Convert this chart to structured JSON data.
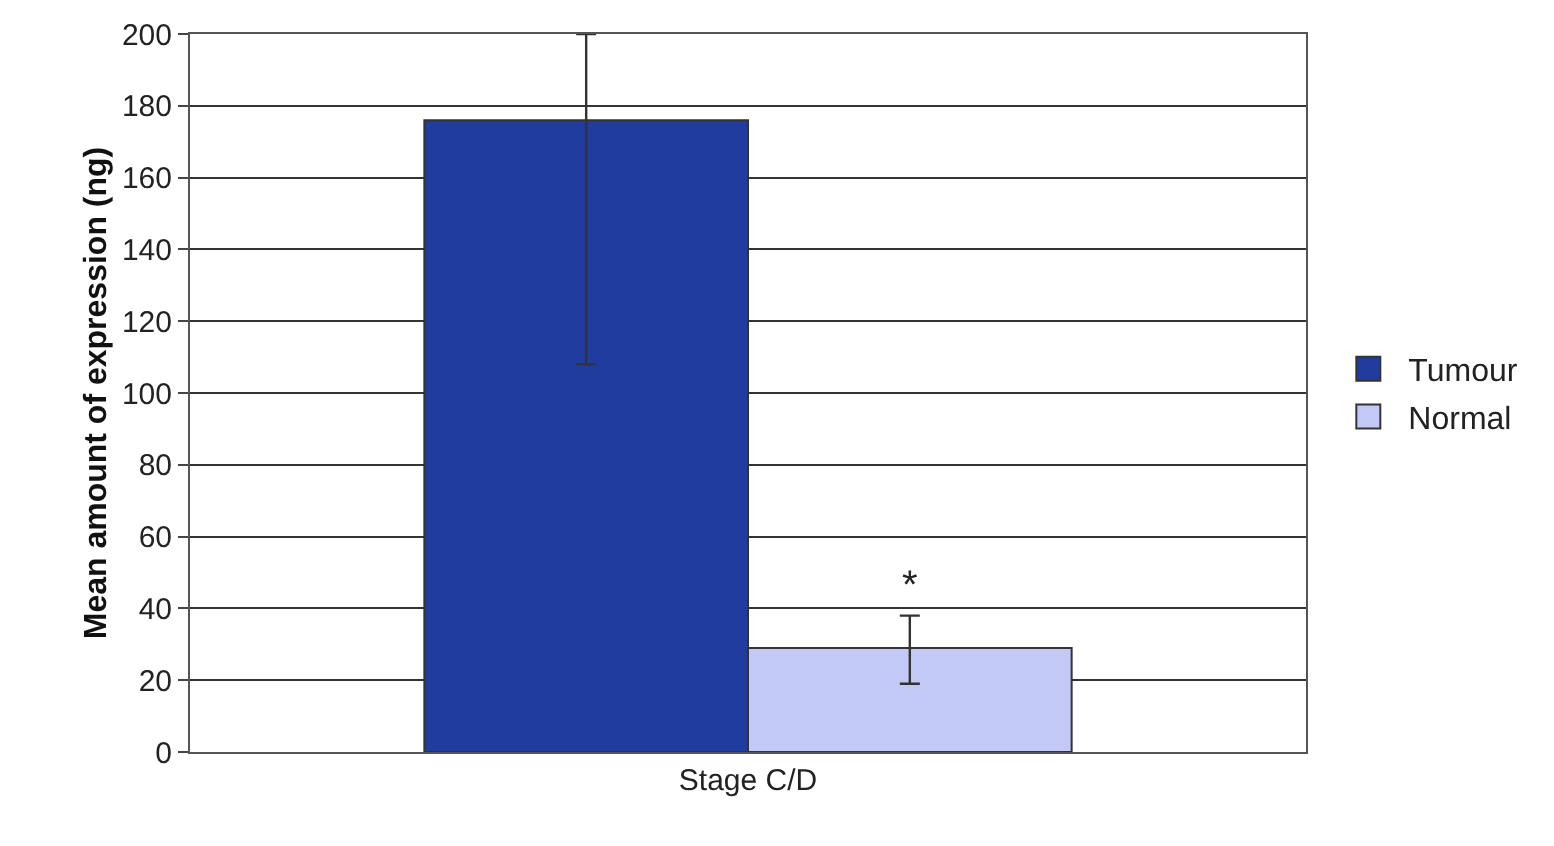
{
  "chart_data": {
    "type": "bar",
    "ylabel": "Mean amount of expression (ng)",
    "categories": [
      "Stage C/D"
    ],
    "series": [
      {
        "name": "Tumour",
        "color": "#1f3c9e",
        "values": [
          176
        ],
        "errors": [
          [
            108,
            200
          ]
        ]
      },
      {
        "name": "Normal",
        "color": "#c3c9f7",
        "values": [
          29
        ],
        "errors": [
          [
            19,
            38
          ]
        ]
      }
    ],
    "ylim": [
      0,
      200
    ],
    "yticks": [
      0,
      20,
      40,
      60,
      80,
      100,
      120,
      140,
      160,
      180,
      200
    ],
    "grid": "y",
    "legend": "right",
    "annotations": [
      "*"
    ]
  }
}
